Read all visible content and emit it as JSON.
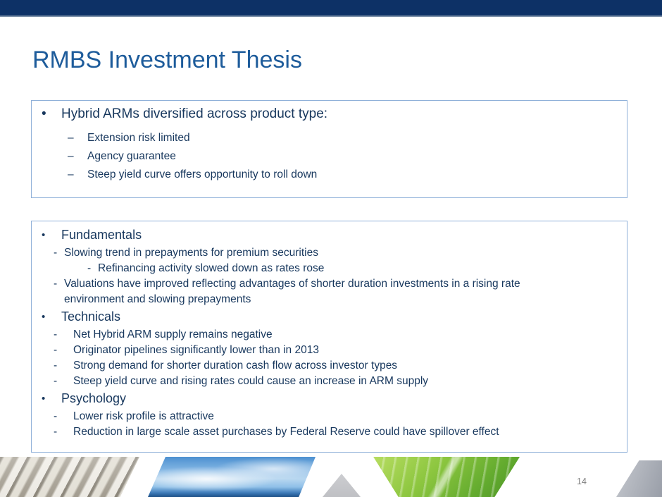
{
  "slide": {
    "title": "RMBS Investment Thesis",
    "page_number": "14"
  },
  "colors": {
    "top_bar": "#0d3166",
    "top_bar_underline": "#7d91a9",
    "title_text": "#1e5c9b",
    "body_text": "#17375d",
    "box_border": "#8fb0d9",
    "page_number_text": "#808080"
  },
  "markers": {
    "bullet": "•",
    "en_dash": "–",
    "hyphen": "-"
  },
  "thesis_box": {
    "heading": "Hybrid ARMs diversified across product type:",
    "items": [
      "Extension risk limited",
      "Agency guarantee",
      "Steep yield curve offers opportunity to roll down"
    ]
  },
  "detail_box": {
    "sections": [
      {
        "heading": "Fundamentals",
        "items": [
          {
            "text": "Slowing trend in prepayments for premium securities",
            "level": 1
          },
          {
            "text": "Refinancing activity slowed down as rates rose",
            "level": 2
          },
          {
            "text": "Valuations have improved reflecting advantages of shorter duration investments in a rising rate",
            "level": 1
          },
          {
            "text": "environment and slowing prepayments",
            "level": "wrap-continuation"
          }
        ]
      },
      {
        "heading": "Technicals",
        "items": [
          {
            "text": "Net Hybrid ARM supply remains negative",
            "level": 1
          },
          {
            "text": "Originator pipelines significantly lower than in 2013",
            "level": 1
          },
          {
            "text": "Strong demand for shorter duration cash flow across investor types",
            "level": 1
          },
          {
            "text": "Steep yield curve and rising rates could cause an increase in ARM supply",
            "level": 1
          }
        ]
      },
      {
        "heading": "Psychology",
        "items": [
          {
            "text": "Lower risk profile is attractive",
            "level": 1
          },
          {
            "text": "Reduction in large scale asset purchases by Federal Reserve could have spillover effect",
            "level": 1
          }
        ]
      }
    ]
  },
  "footer": {
    "decorations": [
      "rope-photo",
      "sky-photo",
      "divider-triangle",
      "leaf-photo",
      "corner-accent"
    ]
  }
}
